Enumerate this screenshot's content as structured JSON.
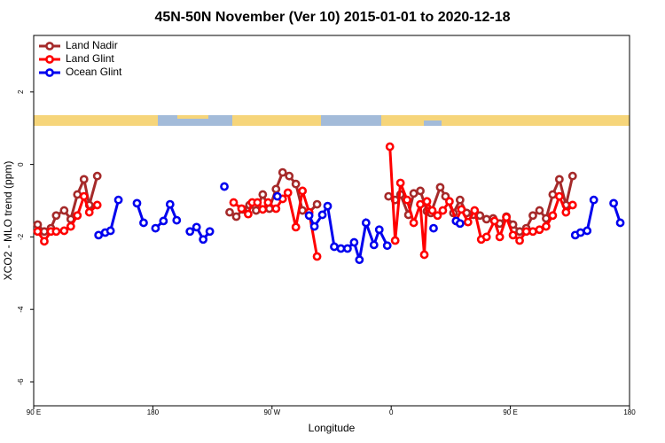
{
  "chart_data": {
    "type": "line",
    "title": "45N-50N November (Ver 10)   2015-01-01 to 2020-12-18",
    "x_label": "Longitude",
    "y_label": "XCO2 - MLO trend (ppm)",
    "xlim": [
      90,
      540
    ],
    "ylim": [
      -6.66,
      3.56
    ],
    "xticks": [
      {
        "value": 90,
        "label": "90 E"
      },
      180,
      {
        "value": 270,
        "label": "90 W"
      },
      {
        "value": 360,
        "label": "0"
      },
      {
        "value": 450,
        "label": "90 E"
      },
      {
        "value": 540,
        "label": "180"
      }
    ],
    "yticks": [
      -6,
      -4,
      -2,
      0,
      2
    ],
    "legend": "top-left",
    "series": [
      {
        "name": "Land Nadir",
        "color": "#a52a2a",
        "x": [
          93,
          98,
          103,
          107,
          113,
          118,
          123,
          128,
          132,
          138,
          null,
          238,
          243,
          248,
          253,
          258,
          263,
          268,
          273,
          278,
          283,
          288,
          293,
          298,
          304,
          null,
          358,
          363,
          367,
          373,
          377,
          382,
          387,
          390,
          397,
          401,
          407,
          412,
          417,
          422,
          427,
          432,
          437,
          442,
          447,
          452,
          457,
          462,
          467,
          472,
          477,
          482,
          487,
          492,
          497
        ],
        "values": [
          -1.66,
          -1.85,
          -1.76,
          -1.41,
          -1.27,
          -1.51,
          -0.83,
          -0.41,
          -1.12,
          -0.32,
          null,
          -1.32,
          -1.44,
          -1.24,
          -1.12,
          -1.27,
          -0.83,
          -1.22,
          -0.68,
          -0.22,
          -0.32,
          -0.54,
          -1.27,
          -1.32,
          -1.1,
          null,
          -0.88,
          -0.98,
          -0.83,
          -1.39,
          -0.8,
          -0.73,
          -1.29,
          -1.34,
          -0.63,
          -0.88,
          -1.34,
          -0.98,
          -1.34,
          -1.39,
          -1.41,
          -1.51,
          -1.49,
          -1.63,
          -1.44,
          -1.66,
          -1.85,
          -1.76,
          -1.41,
          -1.27,
          -1.49,
          -0.83,
          -0.41,
          -1.12,
          -0.32
        ]
      },
      {
        "name": "Land Glint",
        "color": "#ff0000",
        "x": [
          93,
          98,
          103,
          107,
          113,
          118,
          123,
          128,
          132,
          138,
          null,
          241,
          247,
          252,
          255,
          259,
          263,
          267,
          273,
          278,
          282,
          288,
          293,
          298,
          304,
          null,
          359,
          363,
          367,
          372,
          377,
          382,
          385,
          387,
          391,
          395,
          399,
          404,
          409,
          413,
          418,
          423,
          428,
          432,
          438,
          442,
          447,
          452,
          457,
          462,
          467,
          472,
          477,
          482,
          487,
          492,
          497
        ],
        "values": [
          -1.85,
          -2.12,
          -1.85,
          -1.85,
          -1.83,
          -1.71,
          -1.41,
          -0.88,
          -1.32,
          -1.12,
          null,
          -1.05,
          -1.22,
          -1.37,
          -1.05,
          -1.05,
          -1.24,
          -1.05,
          -1.22,
          -0.95,
          -0.78,
          -1.73,
          -0.73,
          -1.32,
          -2.54,
          null,
          0.49,
          -2.1,
          -0.51,
          -0.98,
          -1.61,
          -1.1,
          -2.49,
          -1.02,
          -1.27,
          -1.41,
          -1.27,
          -1.02,
          -1.56,
          -1.24,
          -1.59,
          -1.27,
          -2.07,
          -2.0,
          -1.56,
          -2.0,
          -1.46,
          -1.95,
          -2.1,
          -1.85,
          -1.85,
          -1.8,
          -1.71,
          -1.41,
          -0.88,
          -1.32,
          -1.12
        ]
      },
      {
        "name": "Ocean Glint",
        "color": "#0000ee",
        "x": [
          139,
          144,
          148,
          154,
          null,
          168,
          173,
          null,
          182,
          188,
          193,
          198,
          null,
          208,
          213,
          218,
          223,
          null,
          234,
          null,
          274,
          null,
          298,
          302,
          308,
          312,
          317,
          322,
          327,
          332,
          336,
          341,
          347,
          351,
          357,
          null,
          392,
          null,
          409,
          412,
          null,
          499,
          503,
          508,
          513,
          null,
          528,
          533
        ],
        "values": [
          -1.95,
          -1.88,
          -1.83,
          -0.98,
          null,
          -1.07,
          -1.61,
          null,
          -1.76,
          -1.56,
          -1.1,
          -1.54,
          null,
          -1.85,
          -1.73,
          -2.07,
          -1.85,
          null,
          -0.61,
          null,
          -0.88,
          null,
          -1.41,
          -1.71,
          -1.39,
          -1.15,
          -2.27,
          -2.32,
          -2.32,
          -2.15,
          -2.63,
          -1.61,
          -2.22,
          -1.8,
          -2.24,
          null,
          -1.76,
          null,
          -1.56,
          -1.63,
          null,
          -1.95,
          -1.88,
          -1.83,
          -0.98,
          null,
          -1.07,
          -1.61
        ]
      }
    ]
  }
}
